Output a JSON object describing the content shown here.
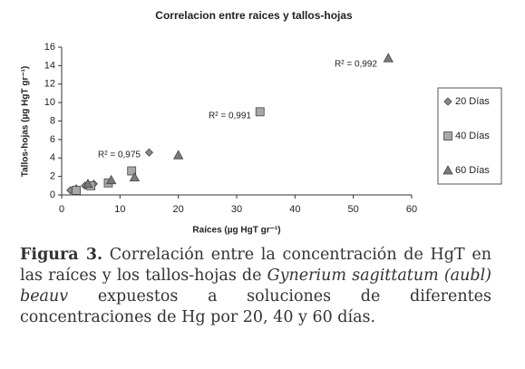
{
  "chart_data": {
    "type": "scatter",
    "title": "Correlacion entre raices y tallos-hojas",
    "x_label": "Raíces (µg HgT gr⁻¹)",
    "y_label": "Tallos-hojas (µg HgT gr⁻¹)",
    "xlim": [
      0,
      60
    ],
    "xticks": [
      0,
      10,
      20,
      30,
      40,
      50,
      60
    ],
    "ylim": [
      0,
      16
    ],
    "yticks": [
      0,
      2,
      4,
      6,
      8,
      10,
      12,
      14,
      16
    ],
    "legend": "right",
    "series": [
      {
        "name": "20 Días",
        "marker": "diamond",
        "color": "#8a8a8a",
        "x": [
          1.5,
          2.5,
          4,
          5.5,
          15
        ],
        "values": [
          0.5,
          0.7,
          1.0,
          1.2,
          4.6
        ]
      },
      {
        "name": "40 Días",
        "marker": "square",
        "color": "#a8a8a8",
        "x": [
          2.5,
          5,
          8,
          12,
          34
        ],
        "values": [
          0.5,
          1.0,
          1.3,
          2.6,
          9.0
        ]
      },
      {
        "name": "60 Días",
        "marker": "triangle",
        "color": "#7a7a7a",
        "x": [
          4.5,
          8.5,
          12.5,
          20,
          56
        ],
        "values": [
          1.2,
          1.6,
          1.9,
          4.3,
          14.8
        ]
      }
    ],
    "annotations": [
      "R² = 0,975",
      "R² = 0,991",
      "R² = 0,992"
    ]
  },
  "caption": {
    "label": "Figura 3.",
    "text_1": "Correlación entre la concentración de HgT en las raíces y los tallos-hojas de",
    "species": "Gynerium sagittatum (aubl) beauv",
    "text_2": "expuestos a soluciones de diferentes concentraciones de Hg por 20, 40 y 60 días."
  }
}
